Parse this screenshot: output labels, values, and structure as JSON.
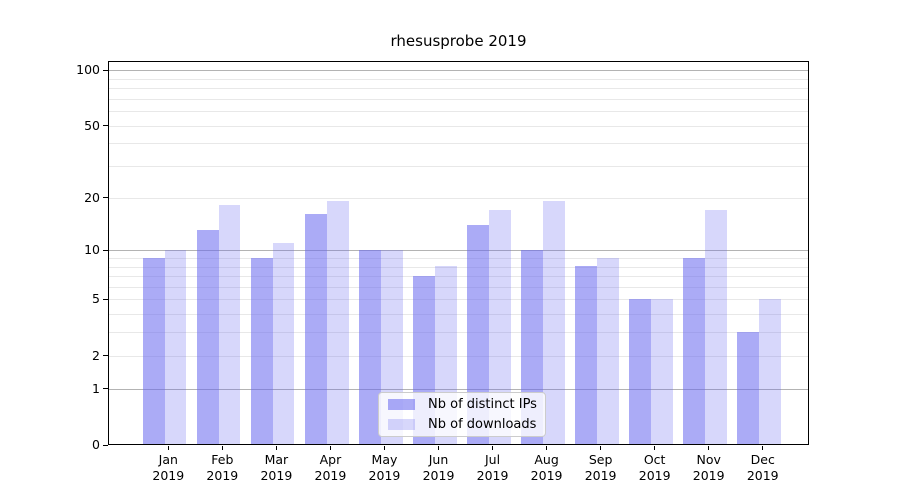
{
  "title": "rhesusprobe 2019",
  "chart_data": {
    "type": "bar",
    "title": "rhesusprobe 2019",
    "categories": [
      "Jan 2019",
      "Feb 2019",
      "Mar 2019",
      "Apr 2019",
      "May 2019",
      "Jun 2019",
      "Jul 2019",
      "Aug 2019",
      "Sep 2019",
      "Oct 2019",
      "Nov 2019",
      "Dec 2019"
    ],
    "series": [
      {
        "key": "ips",
        "name": "Nb of distinct IPs",
        "color": "rgba(102,102,238,0.55)",
        "values": [
          9,
          13,
          9,
          16,
          10,
          7,
          14,
          10,
          8,
          5,
          9,
          3
        ]
      },
      {
        "key": "downloads",
        "name": "Nb of downloads",
        "color": "rgba(102,102,238,0.26)",
        "values": [
          10,
          18,
          11,
          19,
          10,
          8,
          17,
          19,
          9,
          5,
          17,
          5
        ]
      }
    ],
    "yscale": "log1p",
    "ylim": [
      0,
      112
    ],
    "yticks": [
      0,
      1,
      2,
      5,
      10,
      20,
      50,
      100
    ],
    "grid_major": [
      1,
      10,
      100
    ],
    "grid_minor": [
      2,
      3,
      4,
      5,
      6,
      7,
      8,
      9,
      20,
      30,
      40,
      50,
      60,
      70,
      80,
      90
    ],
    "grid": true,
    "legend_position": "lower center",
    "colors": {
      "bar_ips": "rgba(102,102,238,0.55)",
      "bar_downloads": "rgba(102,102,238,0.26)",
      "grid_major": "#b3b3b3",
      "grid_minor": "#e8e8e8",
      "spine": "#000000",
      "text": "#000000"
    }
  },
  "legend": {
    "items": [
      {
        "label": "Nb of distinct IPs"
      },
      {
        "label": "Nb of downloads"
      }
    ]
  }
}
